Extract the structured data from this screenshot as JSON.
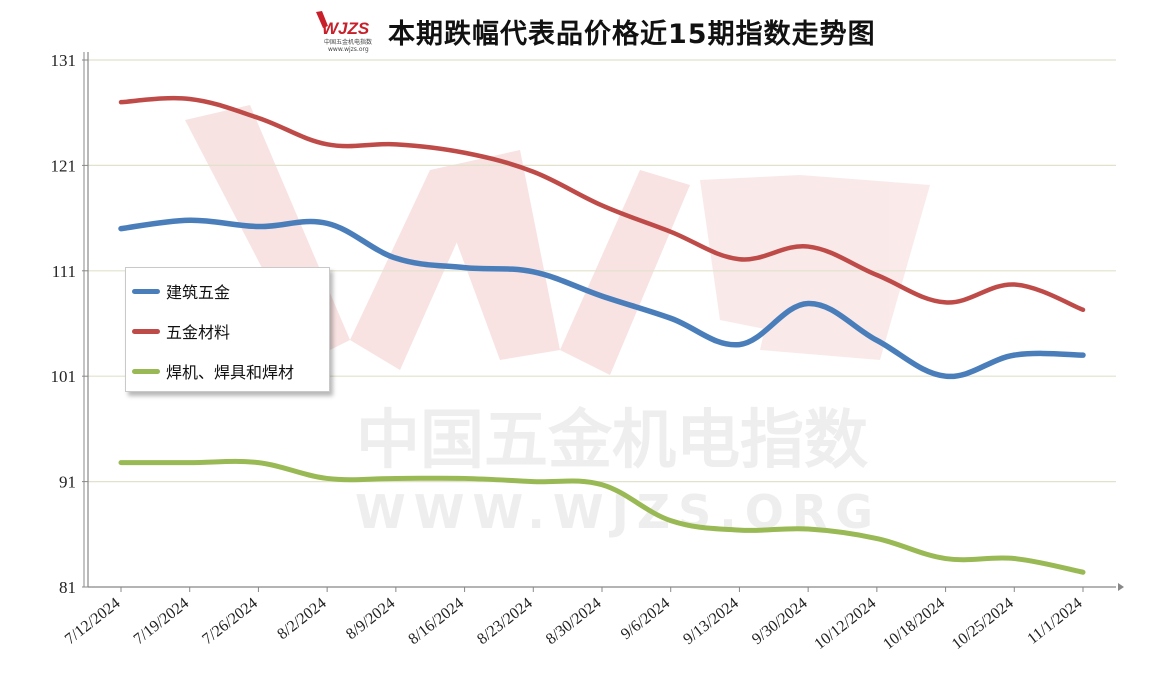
{
  "title": "本期跌幅代表品价格近15期指数走势图",
  "logo": {
    "text": "WJZS",
    "subtext": "中国五金机电指数",
    "url_text": "www.wjzs.org"
  },
  "watermark": {
    "line1": "中国五金机电指数",
    "line2": "WWW.WJZS.ORG"
  },
  "chart_data": {
    "type": "line",
    "title": "本期跌幅代表品价格近15期指数走势图",
    "categories": [
      "7/12/2024",
      "7/19/2024",
      "7/26/2024",
      "8/2/2024",
      "8/9/2024",
      "8/16/2024",
      "8/23/2024",
      "8/30/2024",
      "9/6/2024",
      "9/13/2024",
      "9/30/2024",
      "10/12/2024",
      "10/18/2024",
      "10/25/2024",
      "11/1/2024"
    ],
    "y_ticks": [
      81,
      91,
      101,
      111,
      121,
      131
    ],
    "ylim": [
      81,
      131
    ],
    "grid": true,
    "legend_position": "left-middle",
    "series": [
      {
        "name": "建筑五金",
        "color": "#4a7ebb",
        "values": [
          115.0,
          115.8,
          115.2,
          115.5,
          112.2,
          111.3,
          110.9,
          108.6,
          106.5,
          104.0,
          107.9,
          104.4,
          101.0,
          103.0,
          103.0
        ]
      },
      {
        "name": "五金材料",
        "color": "#be4b48",
        "values": [
          127.0,
          127.3,
          125.5,
          123.0,
          123.0,
          122.2,
          120.4,
          117.2,
          114.7,
          112.1,
          113.3,
          110.6,
          108.0,
          109.7,
          107.3
        ]
      },
      {
        "name": "焊机、焊具和焊材",
        "color": "#98b954",
        "values": [
          92.8,
          92.8,
          92.8,
          91.3,
          91.3,
          91.3,
          91.0,
          90.7,
          87.3,
          86.4,
          86.5,
          85.6,
          83.7,
          83.7,
          82.4
        ]
      }
    ]
  }
}
